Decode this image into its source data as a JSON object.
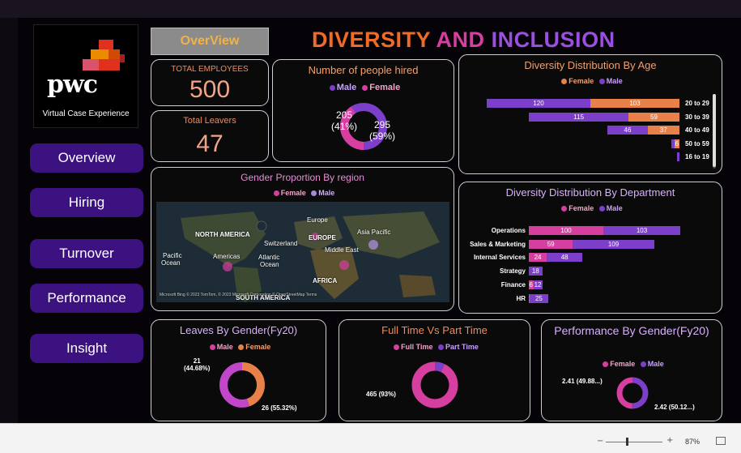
{
  "brand": {
    "logo_text": "pwc",
    "subtitle": "Virtual Case Experience"
  },
  "nav": [
    {
      "label": "Overview"
    },
    {
      "label": "Hiring"
    },
    {
      "label": "Turnover"
    },
    {
      "label": "Performance"
    },
    {
      "label": "Insight"
    }
  ],
  "header": {
    "tag": "OverView",
    "title_part1": "DIVERSITY",
    "title_part2": "AND",
    "title_part3": "INCLUSION"
  },
  "kpis": {
    "employees": {
      "label": "TOTAL EMPLOYEES",
      "value": "500"
    },
    "leavers": {
      "label": "Total Leavers",
      "value": "47"
    }
  },
  "hired": {
    "title": "Number of people hired",
    "legend_male": "Male",
    "legend_female": "Female",
    "female_label": "205\n(41%)",
    "male_label": "295\n(59%)"
  },
  "age": {
    "title": "Diversity Distribution By Age",
    "legend_female": "Female",
    "legend_male": "Male",
    "rows": [
      {
        "cat": "20 to 29",
        "male": 120,
        "female": 103,
        "male_lbl": "120",
        "female_lbl": "103"
      },
      {
        "cat": "30 to 39",
        "male": 115,
        "female": 59,
        "male_lbl": "115",
        "female_lbl": "59"
      },
      {
        "cat": "40 to 49",
        "male": 46,
        "female": 37,
        "male_lbl": "46",
        "female_lbl": "37"
      },
      {
        "cat": "50 to 59",
        "male": 3,
        "female": 6,
        "male_lbl": "",
        "female_lbl": "6"
      },
      {
        "cat": "16 to 19",
        "male": 3,
        "female": 0,
        "male_lbl": "",
        "female_lbl": ""
      }
    ]
  },
  "region": {
    "title": "Gender Proportion By region",
    "legend_female": "Female",
    "legend_male": "Male",
    "labels": [
      "NORTH AMERICA",
      "Americas",
      "Pacific",
      "Ocean",
      "Atlantic",
      "Ocean",
      "Switzerland",
      "Europe",
      "EUROPE",
      "Middle East",
      "Asia Pacific",
      "AFRICA",
      "SOUTH AMERICA"
    ],
    "copyright": "Microsoft Bing   © 2023 TomTom, © 2023 Microsoft Corporation  © OpenStreetMap  Terms"
  },
  "dept": {
    "title": "Diversity Distribution By Department",
    "legend_female": "Female",
    "legend_male": "Male",
    "rows": [
      {
        "cat": "Operations",
        "female": 100,
        "male": 103,
        "female_lbl": "100",
        "male_lbl": "103"
      },
      {
        "cat": "Sales & Marketing",
        "female": 59,
        "male": 109,
        "female_lbl": "59",
        "male_lbl": "109"
      },
      {
        "cat": "Internal Services",
        "female": 24,
        "male": 48,
        "female_lbl": "24",
        "male_lbl": "48"
      },
      {
        "cat": "Strategy",
        "female": 0,
        "male": 18,
        "female_lbl": "",
        "male_lbl": "18"
      },
      {
        "cat": "Finance",
        "female": 6,
        "male": 12,
        "female_lbl": "6",
        "male_lbl": "12"
      },
      {
        "cat": "HR",
        "female": 1,
        "male": 25,
        "female_lbl": "1",
        "male_lbl": "25"
      }
    ]
  },
  "leaves": {
    "title": "Leaves By Gender(Fy20)",
    "legend_male": "Male",
    "legend_female": "Female",
    "male": 26,
    "female": 21,
    "female_label": "21\n(44.68%)",
    "male_label": "26 (55.32%)"
  },
  "fulltime": {
    "title": "Full Time Vs Part Time",
    "legend_full": "Full Time",
    "legend_part": "Part Time",
    "full": 465,
    "part": 35,
    "full_label": "465 (93%)"
  },
  "performance": {
    "title": "Performance By Gender(Fy20)",
    "legend_female": "Female",
    "legend_male": "Male",
    "female": 2.41,
    "male": 2.42,
    "female_label": "2.41 (49.88...)",
    "male_label": "2.42 (50.12...)"
  },
  "status": {
    "zoom": "87%"
  },
  "colors": {
    "male": "#7b3fc9",
    "female": "#e8804a",
    "pink": "#d63fa0",
    "purple_nav": "#3b1280"
  }
}
